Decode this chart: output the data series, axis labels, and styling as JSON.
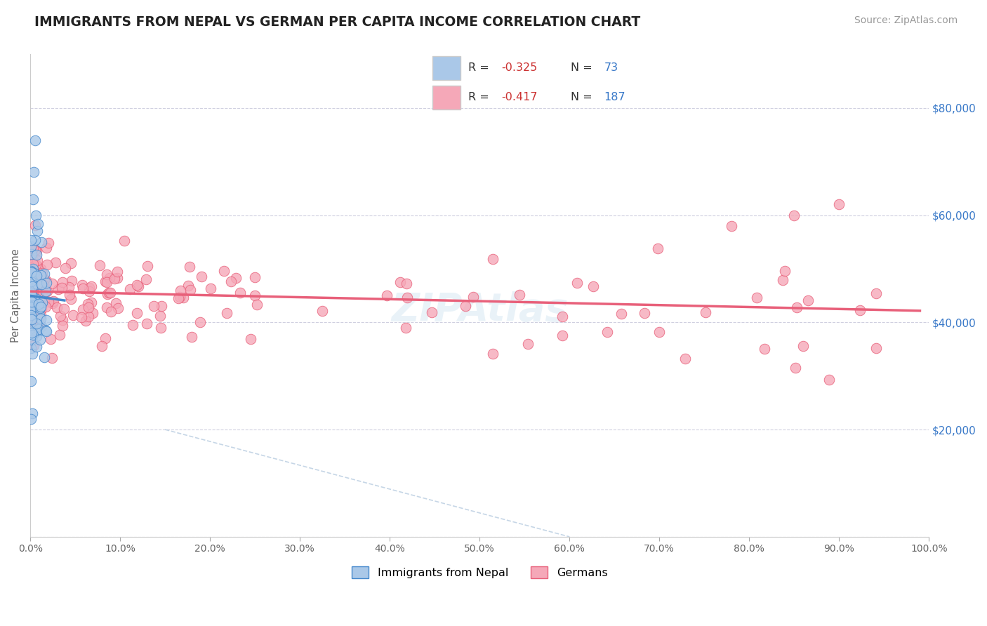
{
  "title": "IMMIGRANTS FROM NEPAL VS GERMAN PER CAPITA INCOME CORRELATION CHART",
  "source_text": "Source: ZipAtlas.com",
  "ylabel": "Per Capita Income",
  "xlim": [
    0.0,
    100.0
  ],
  "ylim": [
    0,
    90000
  ],
  "yticks": [
    0,
    20000,
    40000,
    60000,
    80000
  ],
  "ytick_labels": [
    "",
    "$20,000",
    "$40,000",
    "$60,000",
    "$80,000"
  ],
  "xtick_labels": [
    "0.0%",
    "10.0%",
    "20.0%",
    "30.0%",
    "40.0%",
    "50.0%",
    "60.0%",
    "70.0%",
    "80.0%",
    "90.0%",
    "100.0%"
  ],
  "legend_r1": "-0.325",
  "legend_n1": "73",
  "legend_r2": "-0.417",
  "legend_n2": "187",
  "nepal_color": "#aac8e8",
  "german_color": "#f5a8b8",
  "nepal_line_color": "#4488cc",
  "german_line_color": "#e8607a",
  "background_color": "#ffffff",
  "grid_color": "#d0d0e0"
}
